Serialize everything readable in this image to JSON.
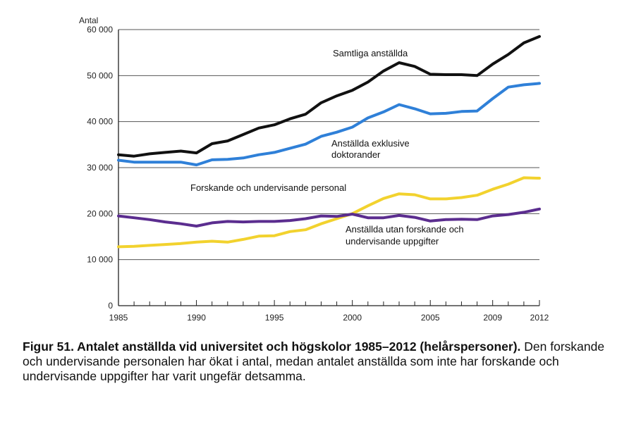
{
  "chart_data": {
    "type": "line",
    "ylabel": "Antal",
    "ylim": [
      0,
      60000
    ],
    "yticks": [
      0,
      10000,
      20000,
      30000,
      40000,
      50000,
      60000
    ],
    "ytick_labels": [
      "0",
      "10 000",
      "20 000",
      "30 000",
      "40 000",
      "50 000",
      "60 000"
    ],
    "xlim": [
      1985,
      2012
    ],
    "xtick_labels": [
      "1985",
      "1990",
      "1995",
      "2000",
      "2005",
      "2009",
      "2012"
    ],
    "xtick_values": [
      1985,
      1990,
      1995,
      2000,
      2005,
      2009,
      2012
    ],
    "grid": "horizontal",
    "x": [
      1985,
      1986,
      1987,
      1988,
      1989,
      1990,
      1991,
      1992,
      1993,
      1994,
      1995,
      1996,
      1997,
      1998,
      1999,
      2000,
      2001,
      2002,
      2003,
      2004,
      2005,
      2006,
      2007,
      2008,
      2009,
      2010,
      2011,
      2012
    ],
    "series": [
      {
        "name": "Samtliga anställda",
        "color": "#111111",
        "values": [
          32800,
          32500,
          33000,
          33300,
          33600,
          33200,
          35200,
          35800,
          37200,
          38600,
          39300,
          40600,
          41600,
          44100,
          45600,
          46800,
          48600,
          51000,
          52800,
          52000,
          50300,
          50200,
          50200,
          50000,
          52500,
          54600,
          57100,
          58500
        ]
      },
      {
        "name": "Anställda exklusive doktorander",
        "color": "#2f80d8",
        "values": [
          31600,
          31200,
          31200,
          31200,
          31200,
          30600,
          31700,
          31800,
          32100,
          32800,
          33300,
          34200,
          35100,
          36800,
          37700,
          38800,
          40800,
          42100,
          43700,
          42800,
          41700,
          41800,
          42200,
          42300,
          45000,
          47500,
          48000,
          48300
        ]
      },
      {
        "name": "Forskande och undervisande personal",
        "color": "#f2d22e",
        "values": [
          12800,
          12900,
          13100,
          13300,
          13500,
          13800,
          14000,
          13800,
          14400,
          15100,
          15200,
          16100,
          16500,
          17800,
          18900,
          20000,
          21700,
          23300,
          24300,
          24100,
          23200,
          23200,
          23500,
          24000,
          25300,
          26400,
          27800,
          27700
        ]
      },
      {
        "name": "Anställda utan forskande och undervisande uppgifter",
        "color": "#5b2d8f",
        "values": [
          19500,
          19100,
          18700,
          18200,
          17800,
          17300,
          18000,
          18300,
          18200,
          18300,
          18300,
          18500,
          18900,
          19500,
          19400,
          19900,
          19100,
          19100,
          19600,
          19200,
          18400,
          18700,
          18800,
          18700,
          19500,
          19800,
          20300,
          21000
        ]
      }
    ],
    "annotations": {
      "series_0": [
        "Samtliga anställda"
      ],
      "series_1": [
        "Anställda exklusive",
        "doktorander"
      ],
      "series_2": [
        "Forskande och undervisande personal"
      ],
      "series_3": [
        "Anställda utan forskande och",
        "undervisande uppgifter"
      ]
    }
  },
  "caption": {
    "bold": "Figur 51. Antalet anställda vid universitet och högskolor 1985–2012 (helårspersoner).",
    "text": " Den forskande och undervisande personalen har ökat i antal, medan antalet anställda som inte har forskande och undervisande uppgifter har varit ungefär detsamma."
  }
}
